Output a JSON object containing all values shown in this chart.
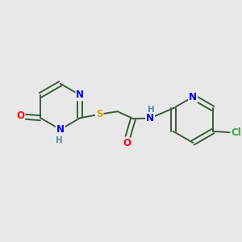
{
  "background_color": "#e8e8e8",
  "bond_color": "#3d5a3d",
  "atom_colors": {
    "N": "#0000ee",
    "O": "#ff0000",
    "S": "#ccaa00",
    "Cl": "#33aa33",
    "H": "#5588aa",
    "C": "#3d5a3d"
  },
  "font_size": 8.5,
  "figsize": [
    3.0,
    3.0
  ],
  "dpi": 100,
  "lw": 1.4
}
